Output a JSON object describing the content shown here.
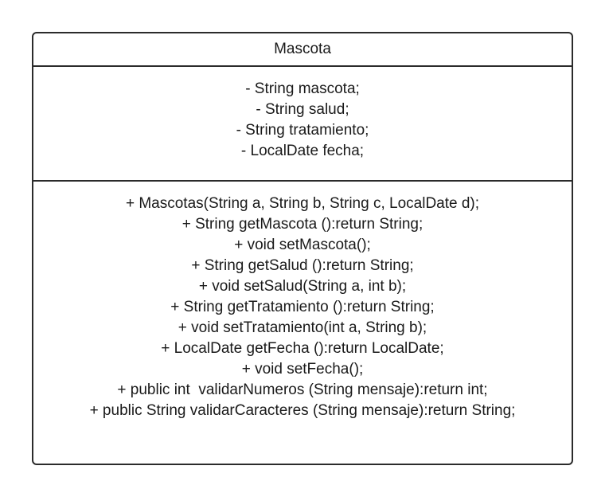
{
  "class_box": {
    "name": "Mascota",
    "attributes": [
      "- String mascota;",
      "- String salud;",
      "- String tratamiento;",
      "- LocalDate fecha;"
    ],
    "methods": [
      "+ Mascotas(String a, String b, String c, LocalDate d);",
      "+ String getMascota ():return String;",
      "+ void setMascota();",
      "+ String getSalud ():return String;",
      "+ void setSalud(String a, int b);",
      "+ String getTratamiento ():return String;",
      "+ void setTratamiento(int a, String b);",
      "+ LocalDate getFecha ():return LocalDate;",
      "+ void setFecha();",
      "+ public int  validarNumeros (String mensaje):return int;",
      "+ public String validarCaracteres (String mensaje):return String;"
    ]
  }
}
